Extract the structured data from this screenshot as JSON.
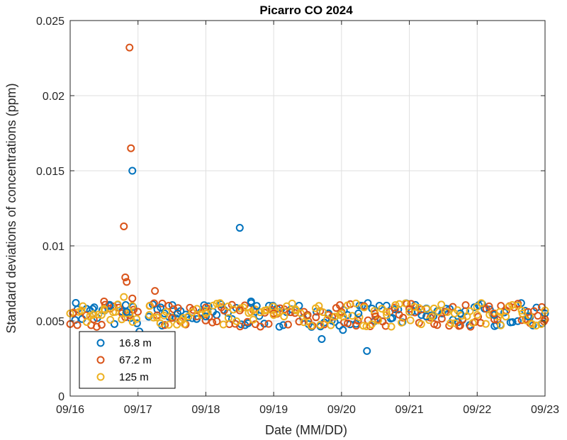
{
  "chart_data": {
    "type": "scatter",
    "title": "Picarro CO 2024",
    "xlabel": "Date (MM/DD)",
    "ylabel": "Standard deviations of concentrations (ppm)",
    "xlim": [
      "2024-09-16T00:00",
      "2024-09-23T00:00"
    ],
    "ylim": [
      0,
      0.025
    ],
    "x_ticks": [
      {
        "value": "2024-09-16T00:00",
        "label": "09/16"
      },
      {
        "value": "2024-09-17T00:00",
        "label": "09/17"
      },
      {
        "value": "2024-09-18T00:00",
        "label": "09/18"
      },
      {
        "value": "2024-09-19T00:00",
        "label": "09/19"
      },
      {
        "value": "2024-09-20T00:00",
        "label": "09/20"
      },
      {
        "value": "2024-09-21T00:00",
        "label": "09/21"
      },
      {
        "value": "2024-09-22T00:00",
        "label": "09/22"
      },
      {
        "value": "2024-09-23T00:00",
        "label": "09/23"
      }
    ],
    "y_ticks": [
      {
        "value": 0,
        "label": "0"
      },
      {
        "value": 0.005,
        "label": "0.005"
      },
      {
        "value": 0.01,
        "label": "0.01"
      },
      {
        "value": 0.015,
        "label": "0.015"
      },
      {
        "value": 0.02,
        "label": "0.02"
      },
      {
        "value": 0.025,
        "label": "0.025"
      }
    ],
    "grid": true,
    "legend_position": "bottom-left",
    "series": [
      {
        "name": "16.8 m",
        "color": "#0072BD",
        "points": [
          [
            "2024-09-16T02:00",
            0.0062
          ],
          [
            "2024-09-16T08:00",
            0.0058
          ],
          [
            "2024-09-16T14:00",
            0.006
          ],
          [
            "2024-09-16T20:00",
            0.0056
          ],
          [
            "2024-09-16T22:00",
            0.015
          ],
          [
            "2024-09-17T00:30",
            0.0043
          ],
          [
            "2024-09-17T08:00",
            0.0059
          ],
          [
            "2024-09-17T14:00",
            0.0055
          ],
          [
            "2024-09-18T00:00",
            0.0053
          ],
          [
            "2024-09-18T12:00",
            0.0112
          ],
          [
            "2024-09-18T16:00",
            0.0063
          ],
          [
            "2024-09-18T18:00",
            0.006
          ],
          [
            "2024-09-19T12:00",
            0.0054
          ],
          [
            "2024-09-19T17:00",
            0.0038
          ],
          [
            "2024-09-20T00:30",
            0.0044
          ],
          [
            "2024-09-20T06:00",
            0.0055
          ],
          [
            "2024-09-20T09:00",
            0.003
          ],
          [
            "2024-09-20T18:00",
            0.0052
          ],
          [
            "2024-09-21T06:00",
            0.0053
          ],
          [
            "2024-09-21T18:00",
            0.0055
          ],
          [
            "2024-09-22T06:00",
            0.0054
          ],
          [
            "2024-09-22T18:00",
            0.0053
          ],
          [
            "2024-09-23T00:00",
            0.0055
          ]
        ]
      },
      {
        "name": "67.2 m",
        "color": "#D95319",
        "points": [
          [
            "2024-09-16T01:00",
            0.0055
          ],
          [
            "2024-09-16T12:00",
            0.0063
          ],
          [
            "2024-09-16T19:00",
            0.0113
          ],
          [
            "2024-09-16T19:30",
            0.0079
          ],
          [
            "2024-09-16T20:00",
            0.0076
          ],
          [
            "2024-09-16T21:00",
            0.0232
          ],
          [
            "2024-09-16T21:30",
            0.0165
          ],
          [
            "2024-09-16T22:00",
            0.0065
          ],
          [
            "2024-09-17T06:00",
            0.007
          ],
          [
            "2024-09-17T12:00",
            0.0052
          ],
          [
            "2024-09-18T00:00",
            0.0059
          ],
          [
            "2024-09-18T12:00",
            0.0057
          ],
          [
            "2024-09-19T00:00",
            0.0055
          ],
          [
            "2024-09-19T12:00",
            0.0054
          ],
          [
            "2024-09-20T00:00",
            0.0056
          ],
          [
            "2024-09-20T12:00",
            0.0053
          ],
          [
            "2024-09-21T00:00",
            0.0058
          ],
          [
            "2024-09-21T18:00",
            0.0047
          ],
          [
            "2024-09-22T06:00",
            0.0055
          ],
          [
            "2024-09-22T18:00",
            0.0056
          ],
          [
            "2024-09-23T00:00",
            0.0051
          ]
        ]
      },
      {
        "name": "125 m",
        "color": "#EDB120",
        "points": [
          [
            "2024-09-16T00:00",
            0.0055
          ],
          [
            "2024-09-16T04:00",
            0.0057
          ],
          [
            "2024-09-16T08:00",
            0.0054
          ],
          [
            "2024-09-16T12:00",
            0.0058
          ],
          [
            "2024-09-16T16:00",
            0.0056
          ],
          [
            "2024-09-16T19:00",
            0.0066
          ],
          [
            "2024-09-16T22:00",
            0.006
          ],
          [
            "2024-09-17T04:00",
            0.0054
          ],
          [
            "2024-09-17T10:00",
            0.0056
          ],
          [
            "2024-09-17T16:00",
            0.0052
          ],
          [
            "2024-09-18T00:00",
            0.0055
          ],
          [
            "2024-09-18T08:00",
            0.0052
          ],
          [
            "2024-09-18T16:00",
            0.0056
          ],
          [
            "2024-09-19T00:00",
            0.0054
          ],
          [
            "2024-09-19T08:00",
            0.0057
          ],
          [
            "2024-09-19T16:00",
            0.006
          ],
          [
            "2024-09-20T00:00",
            0.0055
          ],
          [
            "2024-09-20T08:00",
            0.0059
          ],
          [
            "2024-09-20T16:00",
            0.0054
          ],
          [
            "2024-09-21T00:00",
            0.0056
          ],
          [
            "2024-09-21T08:00",
            0.0053
          ],
          [
            "2024-09-21T16:00",
            0.0055
          ],
          [
            "2024-09-22T00:00",
            0.0054
          ],
          [
            "2024-09-22T08:00",
            0.0056
          ],
          [
            "2024-09-22T16:00",
            0.0055
          ],
          [
            "2024-09-23T00:00",
            0.0057
          ]
        ]
      }
    ],
    "band": {
      "from": "2024-09-16T00:00",
      "to": "2024-09-23T00:00",
      "gap_from": "2024-09-17T00:00",
      "gap_to": "2024-09-17T04:00",
      "range": [
        0.0046,
        0.0062
      ]
    }
  }
}
